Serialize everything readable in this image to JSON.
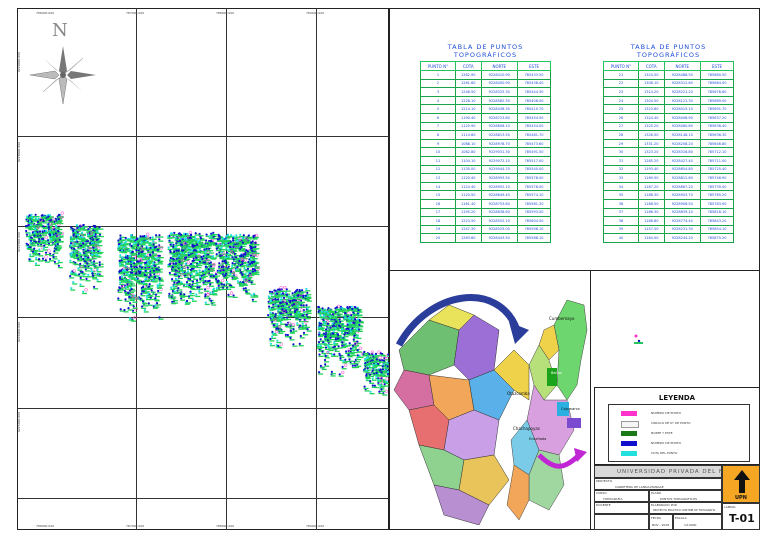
{
  "north_label": "N",
  "map": {
    "grid_x_labels": [
      "786000.000",
      "787000.000",
      "788000.000",
      "789000.000"
    ],
    "grid_y_labels": [
      "9229000.000",
      "9228000.000",
      "9227000.000",
      "9226000.000",
      "9225000.000"
    ]
  },
  "tables": [
    {
      "title": "TABLA  DE  PUNTOS  TOPOGRÁFICOS",
      "headers": [
        "PUNTO N°",
        "COTA",
        "NORTE",
        "ESTE"
      ],
      "rows": [
        [
          "1",
          "1262.90",
          "9228410.90",
          "785433.50"
        ],
        [
          "2",
          "1261.60",
          "9228450.90",
          "785438.40"
        ],
        [
          "3",
          "1246.50",
          "9228325.30",
          "785444.30"
        ],
        [
          "4",
          "1228.10",
          "9228582.30",
          "785406.00"
        ],
        [
          "5",
          "1214.10",
          "9228438.30",
          "785410.70"
        ],
        [
          "6",
          "1190.40",
          "9228723.80",
          "785454.50"
        ],
        [
          "7",
          "1125.90",
          "9228806.10",
          "785454.00"
        ],
        [
          "8",
          "1114.60",
          "9228813.50",
          "785481.70"
        ],
        [
          "9",
          "1088.10",
          "9228978.70",
          "785473.60"
        ],
        [
          "10",
          "1082.80",
          "9229031.30",
          "785491.50"
        ],
        [
          "11",
          "1104.10",
          "9229072.10",
          "785517.00"
        ],
        [
          "12",
          "1135.00",
          "9229044.70",
          "785540.00"
        ],
        [
          "13",
          "1120.40",
          "9228993.50",
          "785578.00"
        ],
        [
          "14",
          "1124.40",
          "9228952.10",
          "785576.00"
        ],
        [
          "15",
          "1120.50",
          "9228849.40",
          "785574.10"
        ],
        [
          "16",
          "1161.40",
          "9228753.80",
          "785581.30"
        ],
        [
          "17",
          "1195.20",
          "9228638.60",
          "785593.50"
        ],
        [
          "18",
          "1223.50",
          "9228552.10",
          "785604.50"
        ],
        [
          "19",
          "1247.30",
          "9228525.00",
          "785596.10"
        ],
        [
          "20",
          "1263.60",
          "9228443.50",
          "785588.10"
        ]
      ]
    },
    {
      "title": "TABLA  DE  PUNTOS  TOPOGRÁFICOS",
      "headers": [
        "PUNTO N°",
        "COTA",
        "NORTE",
        "ESTE"
      ],
      "rows": [
        [
          "21",
          "1324.50",
          "9228488.50",
          "785680.50"
        ],
        [
          "22",
          "1308.10",
          "9228312.60",
          "785684.00"
        ],
        [
          "23",
          "1314.20",
          "9228221.20",
          "785676.60"
        ],
        [
          "24",
          "1304.50",
          "9228121.30",
          "785689.00"
        ],
        [
          "25",
          "1323.60",
          "9228015.10",
          "785691.70"
        ],
        [
          "26",
          "1324.40",
          "9228008.90",
          "785637.20"
        ],
        [
          "27",
          "1325.20",
          "9228060.60",
          "785636.40"
        ],
        [
          "28",
          "1326.50",
          "9228148.10",
          "785636.30"
        ],
        [
          "29",
          "1331.20",
          "9228208.20",
          "785646.80"
        ],
        [
          "30",
          "1323.20",
          "9228316.80",
          "785712.10"
        ],
        [
          "31",
          "1285.20",
          "9228427.40",
          "785711.00"
        ],
        [
          "32",
          "1193.40",
          "9228654.80",
          "785725.40"
        ],
        [
          "33",
          "1169.50",
          "9228812.60",
          "785746.90"
        ],
        [
          "34",
          "1167.20",
          "9228867.20",
          "785739.00"
        ],
        [
          "35",
          "1188.30",
          "9228903.70",
          "785765.20"
        ],
        [
          "36",
          "1168.50",
          "9228906.50",
          "785783.90"
        ],
        [
          "37",
          "1166.30",
          "9228839.10",
          "785816.10"
        ],
        [
          "38",
          "1168.80",
          "9228774.40",
          "785843.20"
        ],
        [
          "39",
          "1157.50",
          "9228231.30",
          "785854.10"
        ],
        [
          "40",
          "1164.00",
          "9228244.20",
          "785875.20"
        ]
      ]
    }
  ],
  "inset_map_labels": [
    "Cumbemayo",
    "Otuzcomba",
    "Baños",
    "Cajamarca",
    "Chachapoyas",
    "Encañada"
  ],
  "legend": {
    "title": "LEYENDA",
    "items": [
      {
        "label": "NÚMERO DE PUNTO",
        "color": "#ff33cc"
      },
      {
        "label": "CÍRCULO DE N° DE PUNTO",
        "color": "#f5f5f5"
      },
      {
        "label": "NORTE Y ESTE",
        "color": "#1a7a1a"
      },
      {
        "label": "NÚMERO DE PUNTO",
        "color": "#1010cc"
      },
      {
        "label": "COTA DEL PUNTO",
        "color": "#22e0e0"
      }
    ]
  },
  "title_block": {
    "university": "UNIVERSIDAD PRIVADA DEL NORTE",
    "logo_text": "UPN",
    "proyecto_label": "PROYECTO",
    "proyecto_value": "CARRETERA DE LANDA-MANGAE",
    "curso_label": "CURSO",
    "curso_value": "TOPOGRAFÍA",
    "plano_label": "PLANO",
    "plano_value": "PUNTOS TOPOGRÁFICOS",
    "docente_label": "DOCENTE",
    "elaborado_label": "ELABORADO POR",
    "elaborado_value": "PROYECTO PRACTICO CONTRIB DE TOPOGRAFIA",
    "fecha_label": "FECHA",
    "fecha_value": "NOV - 2018",
    "escala_label": "ESCALA",
    "escala_value": "1/10000",
    "lamina_label": "LÁMINA",
    "sheet_code": "T-01"
  }
}
